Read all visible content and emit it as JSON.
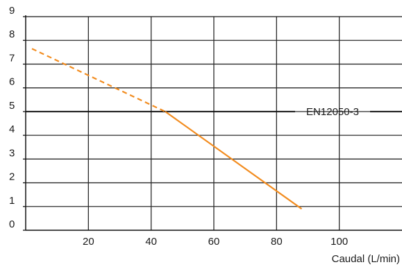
{
  "chart_data": {
    "type": "line",
    "xlabel": "Caudal (L/min)",
    "ylabel": "",
    "xlim": [
      0,
      120
    ],
    "ylim": [
      0,
      9
    ],
    "x_ticks": [
      20,
      40,
      60,
      80,
      100
    ],
    "y_ticks": [
      0,
      1,
      2,
      3,
      4,
      5,
      6,
      7,
      8,
      9
    ],
    "grid": true,
    "series": [
      {
        "color": "#f28c1f",
        "segments": [
          {
            "style": "dashed",
            "x": [
              2,
              44.5
            ],
            "y": [
              7.65,
              5.0
            ]
          },
          {
            "style": "solid",
            "x": [
              44.5,
              88
            ],
            "y": [
              5.0,
              0.9
            ]
          }
        ]
      }
    ],
    "reference_line": {
      "y": 5,
      "label": "EN12050-3",
      "color": "#111111"
    }
  }
}
